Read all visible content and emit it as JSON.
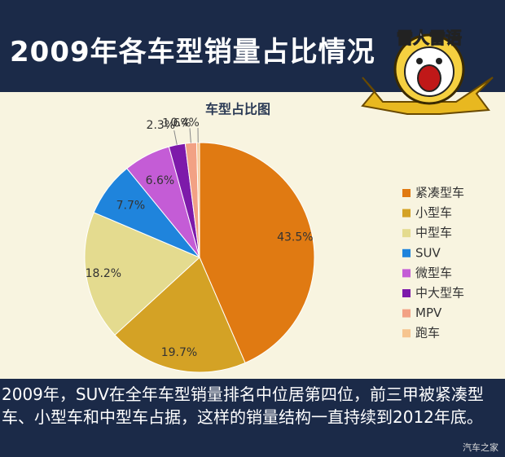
{
  "header": {
    "title": "2009年各车型销量占比情况",
    "logo_text": "雷人雷语"
  },
  "chart_data": {
    "type": "pie",
    "title": "车型占比图",
    "categories": [
      "紧凑型车",
      "小型车",
      "中型车",
      "SUV",
      "微型车",
      "中大型车",
      "MPV",
      "跑车"
    ],
    "values": [
      43.5,
      19.7,
      18.2,
      7.7,
      6.6,
      2.3,
      1.6,
      0.4
    ],
    "value_labels": [
      "43.5%",
      "19.7%",
      "18.2%",
      "7.7%",
      "6.6%",
      "2.3%",
      "1.6%",
      "0.4%"
    ],
    "colors": [
      "#e07a12",
      "#d4a225",
      "#e4db8f",
      "#1f84dc",
      "#c45cd6",
      "#7d1aaa",
      "#f2a184",
      "#f6c48f"
    ],
    "legend": "right"
  },
  "caption": "2009年，SUV在全年车型销量排名中位居第四位，前三甲被紧凑型车、小型车和中型车占据，这样的销量结构一直持续到2012年底。",
  "watermark": "汽车之家"
}
